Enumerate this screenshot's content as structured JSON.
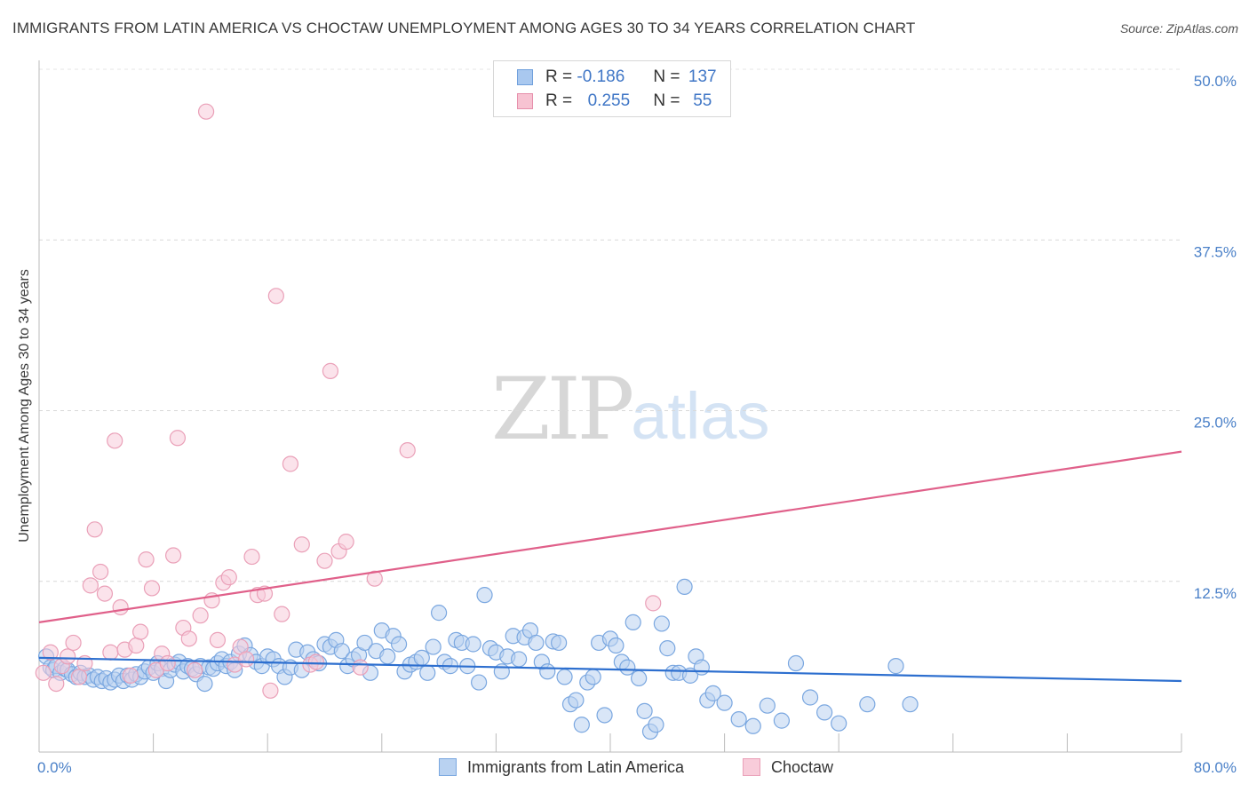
{
  "header": {
    "title": "IMMIGRANTS FROM LATIN AMERICA VS CHOCTAW UNEMPLOYMENT AMONG AGES 30 TO 34 YEARS CORRELATION CHART",
    "source": "Source: ZipAtlas.com"
  },
  "watermark": {
    "zip": "ZIP",
    "atlas": "atlas"
  },
  "legend": {
    "rows": [
      {
        "r_label": "R =",
        "r_value": "-0.186",
        "n_label": "N =",
        "n_value": "137",
        "color": "#a9c8ef",
        "border": "#6f9fdc"
      },
      {
        "r_label": "R =",
        "r_value": "0.255",
        "n_label": "N =",
        "n_value": "55",
        "color": "#f7c3d2",
        "border": "#e68fab"
      }
    ]
  },
  "chart_data": {
    "type": "scatter",
    "title": "IMMIGRANTS FROM LATIN AMERICA VS CHOCTAW UNEMPLOYMENT AMONG AGES 30 TO 34 YEARS CORRELATION CHART",
    "xlabel": "",
    "ylabel": "Unemployment Among Ages 30 to 34 years",
    "xlim": [
      0,
      80
    ],
    "ylim": [
      0,
      50
    ],
    "x_tick_labels": [
      "0.0%",
      "80.0%"
    ],
    "y_tick_labels": [
      "12.5%",
      "25.0%",
      "37.5%",
      "50.0%"
    ],
    "y_ticks": [
      12.5,
      25,
      37.5,
      50
    ],
    "grid": "horizontal dashed",
    "legend_position": "top-center",
    "series": [
      {
        "name": "Immigrants from Latin America",
        "color": "#7aa7e0",
        "fill": "#b9d2f1",
        "trend": {
          "x": [
            0,
            80
          ],
          "y": [
            6.9,
            5.2
          ],
          "color": "#2d6fcf"
        },
        "points": [
          [
            0.5,
            7.0
          ],
          [
            0.8,
            6.2
          ],
          [
            1.0,
            6.0
          ],
          [
            1.2,
            6.3
          ],
          [
            1.5,
            5.8
          ],
          [
            1.8,
            6.1
          ],
          [
            2.0,
            6.0
          ],
          [
            2.3,
            5.7
          ],
          [
            2.6,
            5.5
          ],
          [
            2.9,
            5.8
          ],
          [
            3.2,
            5.5
          ],
          [
            3.5,
            5.6
          ],
          [
            3.8,
            5.3
          ],
          [
            4.1,
            5.5
          ],
          [
            4.4,
            5.2
          ],
          [
            4.7,
            5.4
          ],
          [
            5.0,
            5.1
          ],
          [
            5.3,
            5.3
          ],
          [
            5.6,
            5.6
          ],
          [
            5.9,
            5.2
          ],
          [
            6.2,
            5.6
          ],
          [
            6.5,
            5.3
          ],
          [
            6.8,
            5.7
          ],
          [
            7.1,
            5.5
          ],
          [
            7.4,
            5.9
          ],
          [
            7.7,
            6.2
          ],
          [
            8.0,
            5.8
          ],
          [
            8.3,
            6.5
          ],
          [
            8.6,
            6.1
          ],
          [
            8.9,
            5.2
          ],
          [
            9.2,
            6.0
          ],
          [
            9.5,
            6.4
          ],
          [
            9.8,
            6.6
          ],
          [
            10.1,
            5.9
          ],
          [
            10.4,
            6.3
          ],
          [
            10.7,
            6.1
          ],
          [
            11.0,
            5.7
          ],
          [
            11.3,
            6.3
          ],
          [
            11.6,
            5.0
          ],
          [
            11.9,
            6.2
          ],
          [
            12.2,
            6.1
          ],
          [
            12.5,
            6.5
          ],
          [
            12.8,
            6.8
          ],
          [
            13.1,
            6.3
          ],
          [
            13.4,
            6.6
          ],
          [
            13.7,
            6.0
          ],
          [
            14.0,
            7.2
          ],
          [
            14.4,
            7.8
          ],
          [
            14.8,
            7.1
          ],
          [
            15.2,
            6.6
          ],
          [
            15.6,
            6.3
          ],
          [
            16.0,
            7.0
          ],
          [
            16.4,
            6.8
          ],
          [
            16.8,
            6.3
          ],
          [
            17.2,
            5.5
          ],
          [
            17.6,
            6.2
          ],
          [
            18.0,
            7.5
          ],
          [
            18.4,
            6.0
          ],
          [
            18.8,
            7.3
          ],
          [
            19.2,
            6.8
          ],
          [
            19.6,
            6.5
          ],
          [
            20.0,
            7.9
          ],
          [
            20.4,
            7.7
          ],
          [
            20.8,
            8.2
          ],
          [
            21.2,
            7.4
          ],
          [
            21.6,
            6.3
          ],
          [
            22.0,
            6.8
          ],
          [
            22.4,
            7.1
          ],
          [
            22.8,
            8.0
          ],
          [
            23.2,
            5.8
          ],
          [
            23.6,
            7.4
          ],
          [
            24.0,
            8.9
          ],
          [
            24.4,
            7.0
          ],
          [
            24.8,
            8.5
          ],
          [
            25.2,
            7.9
          ],
          [
            25.6,
            5.9
          ],
          [
            26.0,
            6.4
          ],
          [
            26.4,
            6.6
          ],
          [
            26.8,
            6.9
          ],
          [
            27.2,
            5.8
          ],
          [
            27.6,
            7.7
          ],
          [
            28.0,
            10.2
          ],
          [
            28.4,
            6.6
          ],
          [
            28.8,
            6.3
          ],
          [
            29.2,
            8.2
          ],
          [
            29.6,
            8.0
          ],
          [
            30.0,
            6.3
          ],
          [
            30.4,
            7.9
          ],
          [
            30.8,
            5.1
          ],
          [
            31.2,
            11.5
          ],
          [
            31.6,
            7.6
          ],
          [
            32.0,
            7.3
          ],
          [
            32.4,
            5.9
          ],
          [
            32.8,
            7.0
          ],
          [
            33.2,
            8.5
          ],
          [
            33.6,
            6.8
          ],
          [
            34.0,
            8.4
          ],
          [
            34.4,
            8.9
          ],
          [
            34.8,
            8.0
          ],
          [
            35.2,
            6.6
          ],
          [
            35.6,
            5.9
          ],
          [
            36.0,
            8.1
          ],
          [
            36.4,
            8.0
          ],
          [
            36.8,
            5.5
          ],
          [
            37.2,
            3.5
          ],
          [
            37.6,
            3.8
          ],
          [
            38.0,
            2.0
          ],
          [
            38.4,
            5.1
          ],
          [
            38.8,
            5.5
          ],
          [
            39.2,
            8.0
          ],
          [
            39.6,
            2.7
          ],
          [
            40.0,
            8.3
          ],
          [
            40.4,
            7.8
          ],
          [
            40.8,
            6.6
          ],
          [
            41.2,
            6.2
          ],
          [
            41.6,
            9.5
          ],
          [
            42.0,
            5.4
          ],
          [
            42.4,
            3.0
          ],
          [
            42.8,
            1.5
          ],
          [
            43.2,
            2.0
          ],
          [
            43.6,
            9.4
          ],
          [
            44.0,
            7.6
          ],
          [
            44.4,
            5.8
          ],
          [
            44.8,
            5.8
          ],
          [
            45.2,
            12.1
          ],
          [
            45.6,
            5.6
          ],
          [
            46.0,
            7.0
          ],
          [
            46.4,
            6.2
          ],
          [
            46.8,
            3.8
          ],
          [
            47.2,
            4.3
          ],
          [
            48.0,
            3.6
          ],
          [
            49.0,
            2.4
          ],
          [
            50.0,
            1.9
          ],
          [
            51.0,
            3.4
          ],
          [
            52.0,
            2.3
          ],
          [
            53.0,
            6.5
          ],
          [
            54.0,
            4.0
          ],
          [
            55.0,
            2.9
          ],
          [
            56.0,
            2.1
          ],
          [
            58.0,
            3.5
          ],
          [
            60.0,
            6.3
          ],
          [
            61.0,
            3.5
          ]
        ]
      },
      {
        "name": "Choctaw",
        "color": "#eaa0b8",
        "fill": "#f8ccda",
        "trend": {
          "x": [
            0,
            80
          ],
          "y": [
            9.5,
            22.0
          ],
          "color": "#e0608a"
        },
        "points": [
          [
            0.3,
            5.8
          ],
          [
            0.8,
            7.3
          ],
          [
            1.2,
            5.0
          ],
          [
            1.6,
            6.3
          ],
          [
            2.0,
            7.0
          ],
          [
            2.4,
            8.0
          ],
          [
            2.8,
            5.5
          ],
          [
            3.2,
            6.5
          ],
          [
            3.6,
            12.2
          ],
          [
            3.9,
            16.3
          ],
          [
            4.3,
            13.2
          ],
          [
            4.6,
            11.6
          ],
          [
            5.0,
            7.3
          ],
          [
            5.3,
            22.8
          ],
          [
            5.7,
            10.6
          ],
          [
            6.0,
            7.5
          ],
          [
            6.4,
            5.6
          ],
          [
            6.8,
            7.8
          ],
          [
            7.1,
            8.8
          ],
          [
            7.5,
            14.1
          ],
          [
            7.9,
            12.0
          ],
          [
            8.2,
            6.0
          ],
          [
            8.6,
            7.2
          ],
          [
            9.0,
            6.5
          ],
          [
            9.4,
            14.4
          ],
          [
            9.7,
            23.0
          ],
          [
            10.1,
            9.1
          ],
          [
            10.5,
            8.3
          ],
          [
            10.9,
            6.0
          ],
          [
            11.3,
            10.0
          ],
          [
            11.7,
            46.9
          ],
          [
            12.1,
            11.1
          ],
          [
            12.5,
            8.2
          ],
          [
            12.9,
            12.4
          ],
          [
            13.3,
            12.8
          ],
          [
            13.7,
            6.4
          ],
          [
            14.1,
            7.7
          ],
          [
            14.5,
            6.8
          ],
          [
            14.9,
            14.3
          ],
          [
            15.3,
            11.5
          ],
          [
            15.8,
            11.6
          ],
          [
            16.2,
            4.5
          ],
          [
            16.6,
            33.4
          ],
          [
            17.0,
            10.1
          ],
          [
            17.6,
            21.1
          ],
          [
            18.4,
            15.2
          ],
          [
            19.0,
            6.4
          ],
          [
            19.4,
            6.6
          ],
          [
            20.0,
            14.0
          ],
          [
            20.4,
            27.9
          ],
          [
            21.0,
            14.7
          ],
          [
            21.5,
            15.4
          ],
          [
            22.5,
            6.2
          ],
          [
            23.5,
            12.7
          ],
          [
            25.8,
            22.1
          ],
          [
            43.0,
            10.9
          ]
        ]
      }
    ]
  },
  "bottom_legend": {
    "items": [
      {
        "label": "Immigrants from Latin America",
        "color": "#b9d2f1",
        "border": "#7aa7e0"
      },
      {
        "label": "Choctaw",
        "color": "#f8ccda",
        "border": "#eaa0b8"
      }
    ]
  }
}
